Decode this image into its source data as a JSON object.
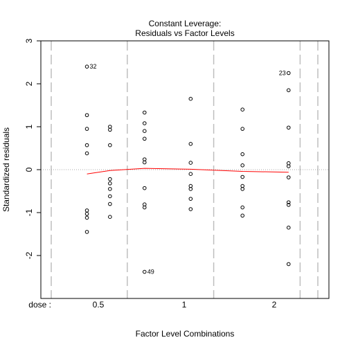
{
  "chart_data": {
    "type": "scatter",
    "title_line1": "Constant Leverage:",
    "title_line2": "Residuals vs Factor Levels",
    "xlabel": "Factor Level Combinations",
    "ylabel": "Standardized residuals",
    "factor_label": "dose :",
    "ylim": [
      -3,
      3
    ],
    "y_ticks": [
      -2,
      -1,
      0,
      1,
      2,
      3
    ],
    "y_tick_labels": [
      "-2",
      "-1",
      "0",
      "1",
      "2",
      "3"
    ],
    "x_tick_labels": [
      {
        "label": "0.5",
        "x": 0.5
      },
      {
        "label": "1",
        "x": 1.0
      },
      {
        "label": "2",
        "x": 2.0
      }
    ],
    "vlines": [
      0.75,
      1.5,
      2.25
    ],
    "hline": 0,
    "colors": {
      "points": "#000000",
      "smooth": "#ff0000",
      "grid": "#bebebe",
      "zero_line": "#aaaaaa"
    },
    "points": [
      {
        "x": 0.4,
        "y": 2.4
      },
      {
        "x": 0.4,
        "y": 1.27
      },
      {
        "x": 0.4,
        "y": 0.95
      },
      {
        "x": 0.4,
        "y": 0.57
      },
      {
        "x": 0.4,
        "y": 0.38
      },
      {
        "x": 0.4,
        "y": -0.95
      },
      {
        "x": 0.4,
        "y": -1.03
      },
      {
        "x": 0.4,
        "y": -1.12
      },
      {
        "x": 0.4,
        "y": -1.45
      },
      {
        "x": 0.6,
        "y": 1.0
      },
      {
        "x": 0.6,
        "y": 0.93
      },
      {
        "x": 0.6,
        "y": 0.57
      },
      {
        "x": 0.6,
        "y": -0.22
      },
      {
        "x": 0.6,
        "y": -0.32
      },
      {
        "x": 0.6,
        "y": -0.45
      },
      {
        "x": 0.6,
        "y": -0.62
      },
      {
        "x": 0.6,
        "y": -0.8
      },
      {
        "x": 0.6,
        "y": -1.1
      },
      {
        "x": 0.9,
        "y": 1.33
      },
      {
        "x": 0.9,
        "y": 1.08
      },
      {
        "x": 0.9,
        "y": 0.9
      },
      {
        "x": 0.9,
        "y": 0.72
      },
      {
        "x": 0.9,
        "y": 0.24
      },
      {
        "x": 0.9,
        "y": 0.17
      },
      {
        "x": 0.9,
        "y": -0.43
      },
      {
        "x": 0.9,
        "y": -0.81
      },
      {
        "x": 0.9,
        "y": -0.88
      },
      {
        "x": 0.9,
        "y": -2.38
      },
      {
        "x": 1.3,
        "y": 1.65
      },
      {
        "x": 1.3,
        "y": 0.6
      },
      {
        "x": 1.3,
        "y": 0.16
      },
      {
        "x": 1.3,
        "y": -0.1
      },
      {
        "x": 1.3,
        "y": -0.38
      },
      {
        "x": 1.3,
        "y": -0.45
      },
      {
        "x": 1.3,
        "y": -0.68
      },
      {
        "x": 1.3,
        "y": -0.92
      },
      {
        "x": 1.75,
        "y": 1.4
      },
      {
        "x": 1.75,
        "y": 0.95
      },
      {
        "x": 1.75,
        "y": 0.36
      },
      {
        "x": 1.75,
        "y": 0.1
      },
      {
        "x": 1.75,
        "y": -0.17
      },
      {
        "x": 1.75,
        "y": -0.38
      },
      {
        "x": 1.75,
        "y": -0.45
      },
      {
        "x": 1.75,
        "y": -0.88
      },
      {
        "x": 1.75,
        "y": -1.07
      },
      {
        "x": 2.15,
        "y": 2.25
      },
      {
        "x": 2.15,
        "y": 1.85
      },
      {
        "x": 2.15,
        "y": 0.98
      },
      {
        "x": 2.15,
        "y": 0.15
      },
      {
        "x": 2.15,
        "y": 0.08
      },
      {
        "x": 2.15,
        "y": -0.18
      },
      {
        "x": 2.15,
        "y": -0.76
      },
      {
        "x": 2.15,
        "y": -0.82
      },
      {
        "x": 2.15,
        "y": -1.35
      },
      {
        "x": 2.15,
        "y": -2.2
      }
    ],
    "point_labels": [
      {
        "text": "32",
        "x": 0.4,
        "y": 2.4,
        "side": "right"
      },
      {
        "text": "49",
        "x": 0.9,
        "y": -2.38,
        "side": "right"
      },
      {
        "text": "23",
        "x": 2.15,
        "y": 2.25,
        "side": "left"
      }
    ],
    "smooth_line": [
      {
        "x": 0.4,
        "y": -0.1
      },
      {
        "x": 0.6,
        "y": -0.02
      },
      {
        "x": 0.9,
        "y": 0.03
      },
      {
        "x": 1.3,
        "y": 0.01
      },
      {
        "x": 1.75,
        "y": -0.04
      },
      {
        "x": 2.15,
        "y": -0.06
      }
    ]
  }
}
